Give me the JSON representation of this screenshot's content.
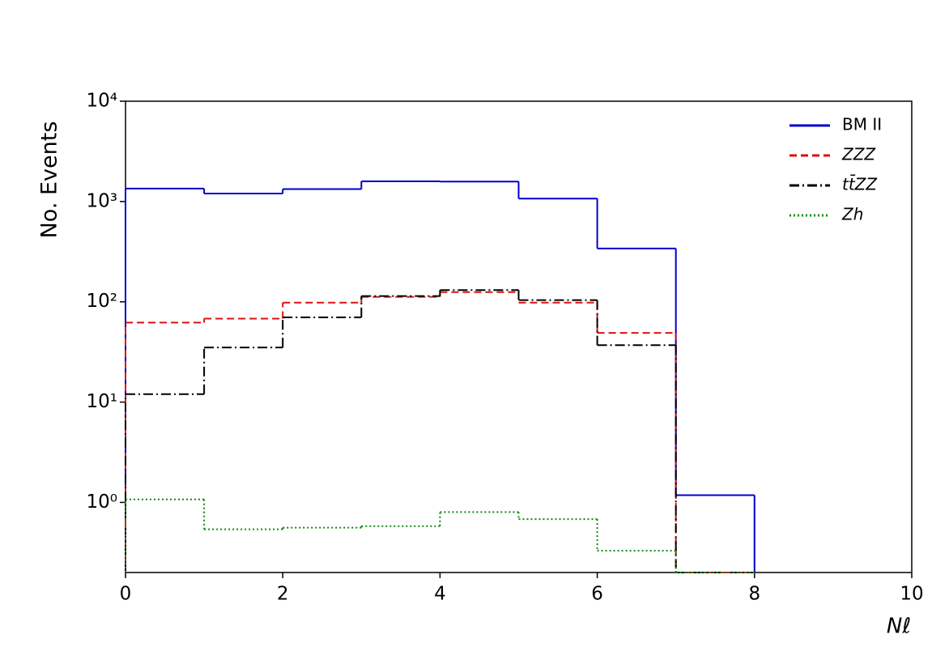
{
  "chart_data": {
    "type": "histogram",
    "y_label": "No. Events",
    "x_label": "Nℓ",
    "bins": [
      0,
      1,
      2,
      3,
      4,
      5,
      6,
      7,
      8
    ],
    "xlim": [
      0,
      10
    ],
    "xticks": [
      0,
      2,
      4,
      6,
      8,
      10
    ],
    "ylim": [
      0.2,
      10000
    ],
    "log_y": true,
    "yticks": [
      {
        "value": 1,
        "label": "10⁰"
      },
      {
        "value": 10,
        "label": "10¹"
      },
      {
        "value": 100,
        "label": "10²"
      },
      {
        "value": 1000,
        "label": "10³"
      },
      {
        "value": 10000,
        "label": "10⁴"
      }
    ],
    "legend": "upper right",
    "series": [
      {
        "name": "BM II",
        "color": "#0000cc",
        "line_style": "solid",
        "values": [
          1345,
          1200,
          1330,
          1590,
          1580,
          1070,
          340,
          1.18
        ]
      },
      {
        "name": "ZZZ",
        "color": "#dd1111",
        "line_style": "dashed",
        "values": [
          62,
          68,
          98,
          112,
          125,
          98,
          49,
          0
        ]
      },
      {
        "name": "tt̄ZZ",
        "color": "#000000",
        "line_style": "dashdot",
        "values": [
          12,
          35,
          70,
          114,
          131,
          104,
          37,
          0
        ]
      },
      {
        "name": "Zh",
        "color": "#118811",
        "line_style": "dotted",
        "values": [
          1.07,
          0.54,
          0.56,
          0.58,
          0.8,
          0.68,
          0.33,
          0
        ]
      }
    ]
  }
}
